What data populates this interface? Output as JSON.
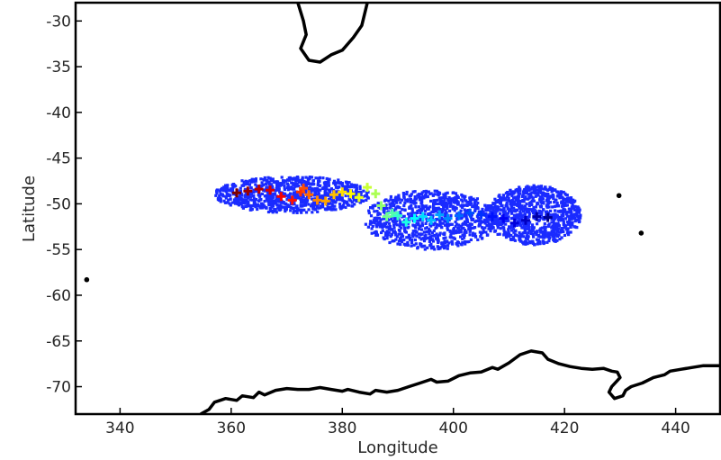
{
  "chart_data": {
    "type": "scatter",
    "title": "",
    "xlabel": "Longitude",
    "ylabel": "Latitude",
    "xlim": [
      332,
      448
    ],
    "ylim": [
      -73,
      -28
    ],
    "xticks": [
      340,
      360,
      380,
      400,
      420,
      440
    ],
    "yticks": [
      -30,
      -35,
      -40,
      -45,
      -50,
      -55,
      -60,
      -65,
      -70
    ],
    "grid": false,
    "legend": "none",
    "colors": {
      "ensemble_cloud": "#1a2bff",
      "coastline": "#000000",
      "track_colormap": [
        "#7f0000",
        "#ff0000",
        "#ff8000",
        "#ffff00",
        "#80ff80",
        "#00ffff",
        "#0080ff",
        "#0000ff",
        "#00008f"
      ]
    },
    "series": [
      {
        "type": "ensemble_scatter",
        "marker": "dot",
        "clusters": [
          {
            "x_range": [
              357,
              385
            ],
            "y_range": [
              -51,
              -47
            ]
          },
          {
            "x_range": [
              384,
              408
            ],
            "y_range": [
              -55,
              -48.5
            ]
          },
          {
            "x_range": [
              406,
              423
            ],
            "y_range": [
              -54.5,
              -48
            ]
          }
        ]
      },
      {
        "type": "mean_track",
        "marker": "plus",
        "points": [
          {
            "x": 361,
            "y": -48.8
          },
          {
            "x": 363,
            "y": -48.6
          },
          {
            "x": 365,
            "y": -48.4
          },
          {
            "x": 367,
            "y": -48.5
          },
          {
            "x": 369,
            "y": -49.2
          },
          {
            "x": 371,
            "y": -49.6
          },
          {
            "x": 372.5,
            "y": -48.7
          },
          {
            "x": 373,
            "y": -48.3
          },
          {
            "x": 374,
            "y": -49.0
          },
          {
            "x": 375.5,
            "y": -49.6
          },
          {
            "x": 377,
            "y": -49.7
          },
          {
            "x": 378.5,
            "y": -49.0
          },
          {
            "x": 380,
            "y": -48.7
          },
          {
            "x": 381.5,
            "y": -48.9
          },
          {
            "x": 383,
            "y": -49.3
          },
          {
            "x": 384.5,
            "y": -48.2
          },
          {
            "x": 386,
            "y": -48.9
          },
          {
            "x": 387,
            "y": -50.2
          },
          {
            "x": 388,
            "y": -51.4
          },
          {
            "x": 389,
            "y": -51.0
          },
          {
            "x": 390,
            "y": -51.3
          },
          {
            "x": 391.5,
            "y": -52.0
          },
          {
            "x": 393,
            "y": -51.6
          },
          {
            "x": 394.5,
            "y": -51.4
          },
          {
            "x": 396,
            "y": -51.8
          },
          {
            "x": 397.5,
            "y": -51.2
          },
          {
            "x": 399,
            "y": -51.6
          },
          {
            "x": 401,
            "y": -51.3
          },
          {
            "x": 403,
            "y": -51.0
          },
          {
            "x": 405,
            "y": -51.2
          },
          {
            "x": 407,
            "y": -51.4
          },
          {
            "x": 409,
            "y": -51.6
          },
          {
            "x": 411,
            "y": -52.1
          },
          {
            "x": 413,
            "y": -51.8
          },
          {
            "x": 415,
            "y": -51.4
          },
          {
            "x": 417,
            "y": -51.5
          }
        ]
      }
    ],
    "coastlines": [
      [
        [
          372,
          -28
        ],
        [
          373,
          -30
        ],
        [
          373.5,
          -31.5
        ],
        [
          372.5,
          -33
        ],
        [
          374,
          -34.3
        ],
        [
          376,
          -34.5
        ],
        [
          378,
          -33.7
        ],
        [
          380,
          -33.2
        ],
        [
          382,
          -31.8
        ],
        [
          383.5,
          -30.5
        ],
        [
          384.5,
          -28
        ]
      ],
      [
        [
          354.5,
          -73
        ],
        [
          356,
          -72.5
        ],
        [
          357,
          -71.7
        ],
        [
          359,
          -71.3
        ],
        [
          361,
          -71.5
        ],
        [
          362,
          -71.0
        ],
        [
          364,
          -71.2
        ],
        [
          365,
          -70.6
        ],
        [
          366,
          -70.9
        ],
        [
          368,
          -70.4
        ],
        [
          370,
          -70.2
        ],
        [
          372,
          -70.3
        ],
        [
          374,
          -70.3
        ],
        [
          376,
          -70.1
        ],
        [
          378,
          -70.3
        ],
        [
          380,
          -70.5
        ],
        [
          381,
          -70.3
        ],
        [
          383,
          -70.6
        ],
        [
          385,
          -70.8
        ],
        [
          386,
          -70.4
        ],
        [
          388,
          -70.6
        ],
        [
          390,
          -70.4
        ],
        [
          392,
          -70.0
        ],
        [
          394,
          -69.6
        ],
        [
          396,
          -69.2
        ],
        [
          397,
          -69.5
        ],
        [
          399,
          -69.4
        ],
        [
          401,
          -68.8
        ],
        [
          403,
          -68.5
        ],
        [
          405,
          -68.4
        ],
        [
          407,
          -67.9
        ],
        [
          408,
          -68.1
        ],
        [
          410,
          -67.4
        ],
        [
          412,
          -66.5
        ],
        [
          414,
          -66.1
        ],
        [
          416,
          -66.3
        ],
        [
          417,
          -67.0
        ],
        [
          419,
          -67.5
        ],
        [
          421,
          -67.8
        ],
        [
          423,
          -68.0
        ],
        [
          425,
          -68.1
        ],
        [
          427,
          -68.0
        ],
        [
          428.5,
          -68.3
        ],
        [
          429.5,
          -68.4
        ],
        [
          430,
          -69.0
        ],
        [
          428.5,
          -70.0
        ],
        [
          428,
          -70.6
        ],
        [
          429,
          -71.3
        ],
        [
          430.5,
          -71.0
        ],
        [
          431,
          -70.4
        ],
        [
          432,
          -70.0
        ],
        [
          434,
          -69.6
        ],
        [
          436,
          -69.0
        ],
        [
          438,
          -68.7
        ],
        [
          439,
          -68.3
        ],
        [
          441,
          -68.1
        ],
        [
          443,
          -67.9
        ],
        [
          445,
          -67.7
        ],
        [
          448,
          -67.7
        ]
      ]
    ],
    "islands": [
      {
        "x": 334,
        "y": -58.3
      },
      {
        "x": 429.8,
        "y": -49.1
      },
      {
        "x": 433.8,
        "y": -53.2
      }
    ]
  }
}
